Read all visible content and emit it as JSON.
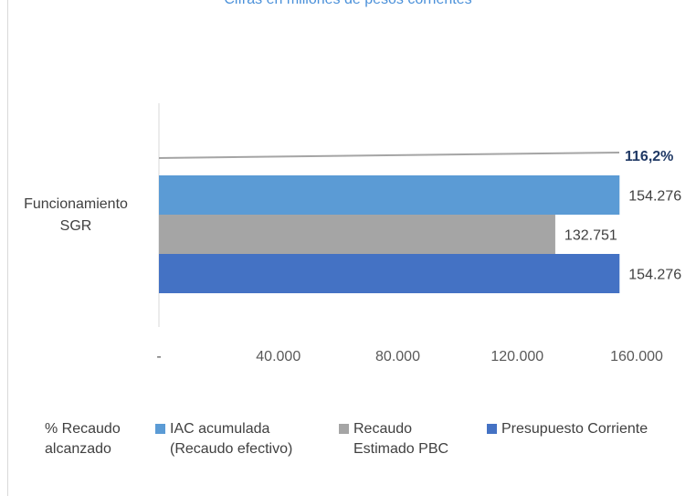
{
  "chart_data": {
    "type": "bar",
    "orientation": "horizontal",
    "subtitle": "Cifras en millones de pesos corrientes",
    "categories": [
      "Funcionamiento SGR"
    ],
    "category_label_lines": [
      "Funcionamiento",
      "SGR"
    ],
    "series": [
      {
        "name": "IAC acumulada (Recaudo efectivo)",
        "values": [
          154276
        ],
        "label": "154.276",
        "color": "#5b9bd5"
      },
      {
        "name": "Recaudo Estimado PBC",
        "values": [
          132751
        ],
        "label": "132.751",
        "color": "#a5a5a5"
      },
      {
        "name": "Presupuesto Corriente",
        "values": [
          154276
        ],
        "label": "154.276",
        "color": "#4472c4"
      }
    ],
    "line_series": {
      "name": "% Recaudo alcanzado",
      "value": 116.2,
      "label": "116,2%",
      "color": "#a5a5a5",
      "label_color": "#1f3864"
    },
    "xaxis": {
      "min": 0,
      "max": 160000,
      "ticks": [
        0,
        40000,
        80000,
        120000,
        160000
      ],
      "tick_labels": [
        "-",
        "40.000",
        "80.000",
        "120.000",
        "160.000"
      ]
    },
    "grid": false,
    "legend_position": "bottom"
  },
  "legend": [
    {
      "lines": [
        "% Recaudo",
        "alcanzado"
      ],
      "swatch": false
    },
    {
      "lines": [
        "IAC acumulada",
        "(Recaudo efectivo)"
      ],
      "swatch": true,
      "color": "#5b9bd5"
    },
    {
      "lines": [
        "Recaudo",
        "Estimado PBC"
      ],
      "swatch": true,
      "color": "#a5a5a5"
    },
    {
      "lines": [
        "Presupuesto Corriente"
      ],
      "swatch": true,
      "color": "#4472c4"
    }
  ]
}
